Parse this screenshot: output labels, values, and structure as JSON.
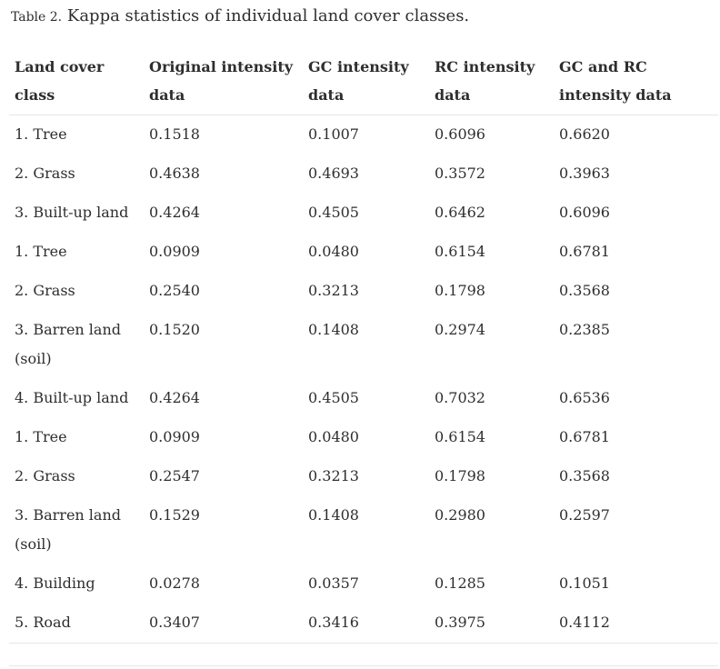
{
  "caption": {
    "label": "Table 2.",
    "text": "Kappa statistics of individual land cover classes."
  },
  "table": {
    "headers": [
      "Land cover class",
      "Original intensity data",
      "GC intensity data",
      "RC intensity data",
      "GC and RC intensity data"
    ],
    "rows": [
      [
        "1. Tree",
        "0.1518",
        "0.1007",
        "0.6096",
        "0.6620"
      ],
      [
        "2. Grass",
        "0.4638",
        "0.4693",
        "0.3572",
        "0.3963"
      ],
      [
        "3. Built-up land",
        "0.4264",
        "0.4505",
        "0.6462",
        "0.6096"
      ],
      [
        "1. Tree",
        "0.0909",
        "0.0480",
        "0.6154",
        "0.6781"
      ],
      [
        "2. Grass",
        "0.2540",
        "0.3213",
        "0.1798",
        "0.3568"
      ],
      [
        "3. Barren land (soil)",
        "0.1520",
        "0.1408",
        "0.2974",
        "0.2385"
      ],
      [
        "4. Built-up land",
        "0.4264",
        "0.4505",
        "0.7032",
        "0.6536"
      ],
      [
        "1. Tree",
        "0.0909",
        "0.0480",
        "0.6154",
        "0.6781"
      ],
      [
        "2. Grass",
        "0.2547",
        "0.3213",
        "0.1798",
        "0.3568"
      ],
      [
        "3. Barren land (soil)",
        "0.1529",
        "0.1408",
        "0.2980",
        "0.2597"
      ],
      [
        "4. Building",
        "0.0278",
        "0.0357",
        "0.1285",
        "0.1051"
      ],
      [
        "5. Road",
        "0.3407",
        "0.3416",
        "0.3975",
        "0.4112"
      ]
    ]
  }
}
